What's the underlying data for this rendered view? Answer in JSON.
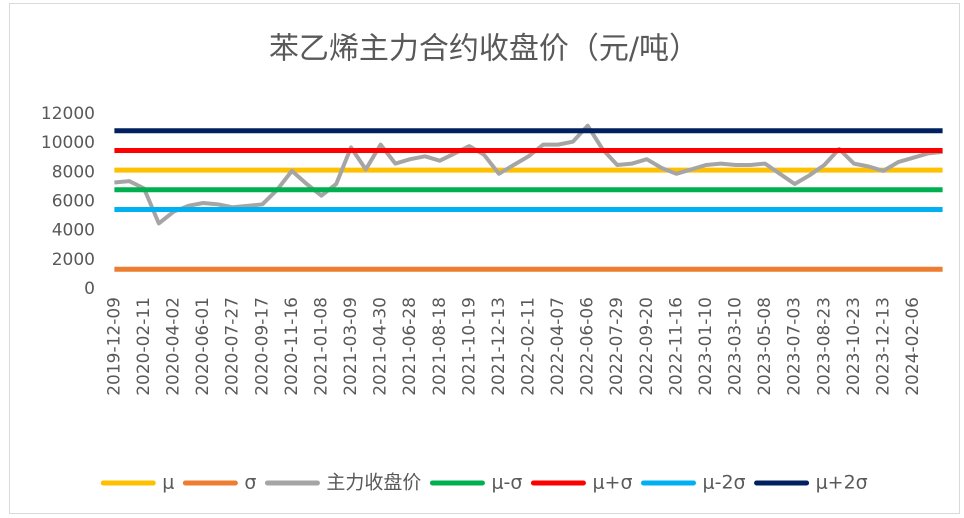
{
  "chart_data": {
    "type": "line",
    "title": "苯乙烯主力合约收盘价（元/吨）",
    "categories": [
      "2019-12-09",
      null,
      "2020-02-11",
      null,
      "2020-04-02",
      null,
      "2020-06-01",
      null,
      "2020-07-27",
      null,
      "2020-09-17",
      null,
      "2020-11-16",
      null,
      "2021-01-08",
      null,
      "2021-03-09",
      null,
      "2021-04-30",
      null,
      "2021-06-28",
      null,
      "2021-08-18",
      null,
      "2021-10-19",
      null,
      "2021-12-13",
      null,
      "2022-02-11",
      null,
      "2022-04-07",
      null,
      "2022-06-06",
      null,
      "2022-07-29",
      null,
      "2022-09-20",
      null,
      "2022-11-16",
      null,
      "2023-01-10",
      null,
      "2023-03-10",
      null,
      "2023-05-08",
      null,
      "2023-07-03",
      null,
      "2023-08-23",
      null,
      "2023-10-23",
      null,
      "2023-12-13",
      null,
      "2024-02-06",
      null,
      null
    ],
    "series": [
      {
        "name": "μ",
        "color": "#ffc000",
        "values": [
          8150,
          8150,
          8150,
          8150,
          8150,
          8150,
          8150,
          8150,
          8150,
          8150,
          8150,
          8150,
          8150,
          8150,
          8150,
          8150,
          8150,
          8150,
          8150,
          8150,
          8150,
          8150,
          8150,
          8150,
          8150,
          8150,
          8150,
          8150,
          8150,
          8150,
          8150,
          8150,
          8150,
          8150,
          8150,
          8150,
          8150,
          8150,
          8150,
          8150,
          8150,
          8150,
          8150,
          8150,
          8150,
          8150,
          8150,
          8150,
          8150,
          8150,
          8150,
          8150,
          8150,
          8150,
          8150,
          8150,
          8150
        ]
      },
      {
        "name": "σ",
        "color": "#ed7d31",
        "values": [
          1350,
          1350,
          1350,
          1350,
          1350,
          1350,
          1350,
          1350,
          1350,
          1350,
          1350,
          1350,
          1350,
          1350,
          1350,
          1350,
          1350,
          1350,
          1350,
          1350,
          1350,
          1350,
          1350,
          1350,
          1350,
          1350,
          1350,
          1350,
          1350,
          1350,
          1350,
          1350,
          1350,
          1350,
          1350,
          1350,
          1350,
          1350,
          1350,
          1350,
          1350,
          1350,
          1350,
          1350,
          1350,
          1350,
          1350,
          1350,
          1350,
          1350,
          1350,
          1350,
          1350,
          1350,
          1350,
          1350,
          1350
        ]
      },
      {
        "name": "主力收盘价",
        "color": "#a5a5a5",
        "values": [
          7300,
          7400,
          6900,
          4500,
          5300,
          5700,
          5900,
          5800,
          5600,
          5700,
          5800,
          6800,
          8100,
          7200,
          6400,
          7200,
          9700,
          8200,
          9900,
          8600,
          8900,
          9100,
          8800,
          9300,
          9800,
          9200,
          7900,
          8500,
          9100,
          9900,
          9900,
          10100,
          11200,
          9600,
          8500,
          8600,
          8900,
          8300,
          7900,
          8200,
          8500,
          8600,
          8500,
          8500,
          8600,
          7900,
          7200,
          7800,
          8500,
          9600,
          8600,
          8400,
          8100,
          8700,
          9000,
          9300,
          9400
        ]
      },
      {
        "name": "μ-σ",
        "color": "#00b050",
        "values": [
          6800,
          6800,
          6800,
          6800,
          6800,
          6800,
          6800,
          6800,
          6800,
          6800,
          6800,
          6800,
          6800,
          6800,
          6800,
          6800,
          6800,
          6800,
          6800,
          6800,
          6800,
          6800,
          6800,
          6800,
          6800,
          6800,
          6800,
          6800,
          6800,
          6800,
          6800,
          6800,
          6800,
          6800,
          6800,
          6800,
          6800,
          6800,
          6800,
          6800,
          6800,
          6800,
          6800,
          6800,
          6800,
          6800,
          6800,
          6800,
          6800,
          6800,
          6800,
          6800,
          6800,
          6800,
          6800,
          6800,
          6800
        ]
      },
      {
        "name": "μ+σ",
        "color": "#ff0000",
        "values": [
          9500,
          9500,
          9500,
          9500,
          9500,
          9500,
          9500,
          9500,
          9500,
          9500,
          9500,
          9500,
          9500,
          9500,
          9500,
          9500,
          9500,
          9500,
          9500,
          9500,
          9500,
          9500,
          9500,
          9500,
          9500,
          9500,
          9500,
          9500,
          9500,
          9500,
          9500,
          9500,
          9500,
          9500,
          9500,
          9500,
          9500,
          9500,
          9500,
          9500,
          9500,
          9500,
          9500,
          9500,
          9500,
          9500,
          9500,
          9500,
          9500,
          9500,
          9500,
          9500,
          9500,
          9500,
          9500,
          9500,
          9500
        ]
      },
      {
        "name": "μ-2σ",
        "color": "#00b0f0",
        "values": [
          5450,
          5450,
          5450,
          5450,
          5450,
          5450,
          5450,
          5450,
          5450,
          5450,
          5450,
          5450,
          5450,
          5450,
          5450,
          5450,
          5450,
          5450,
          5450,
          5450,
          5450,
          5450,
          5450,
          5450,
          5450,
          5450,
          5450,
          5450,
          5450,
          5450,
          5450,
          5450,
          5450,
          5450,
          5450,
          5450,
          5450,
          5450,
          5450,
          5450,
          5450,
          5450,
          5450,
          5450,
          5450,
          5450,
          5450,
          5450,
          5450,
          5450,
          5450,
          5450,
          5450,
          5450,
          5450,
          5450,
          5450
        ]
      },
      {
        "name": "μ+2σ",
        "color": "#002060",
        "values": [
          10850,
          10850,
          10850,
          10850,
          10850,
          10850,
          10850,
          10850,
          10850,
          10850,
          10850,
          10850,
          10850,
          10850,
          10850,
          10850,
          10850,
          10850,
          10850,
          10850,
          10850,
          10850,
          10850,
          10850,
          10850,
          10850,
          10850,
          10850,
          10850,
          10850,
          10850,
          10850,
          10850,
          10850,
          10850,
          10850,
          10850,
          10850,
          10850,
          10850,
          10850,
          10850,
          10850,
          10850,
          10850,
          10850,
          10850,
          10850,
          10850,
          10850,
          10850,
          10850,
          10850,
          10850,
          10850,
          10850,
          10850
        ]
      }
    ],
    "ylim": [
      0,
      12000
    ],
    "yticks": [
      0,
      2000,
      4000,
      6000,
      8000,
      10000,
      12000
    ],
    "grid": false,
    "legend": "bottom"
  }
}
